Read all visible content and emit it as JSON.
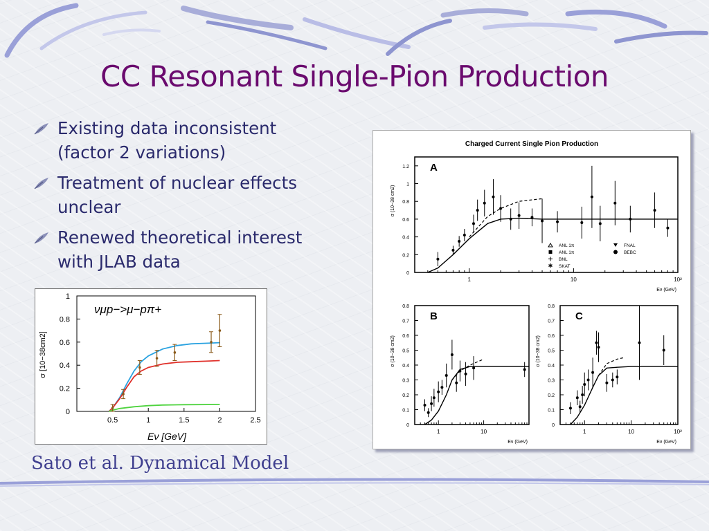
{
  "title": "CC Resonant Single-Pion Production",
  "bullets": [
    "Existing data inconsistent\n(factor 2 variations)",
    "Treatment of nuclear effects\nunclear",
    "Renewed theoretical interest\nwith JLAB data"
  ],
  "caption": "Sato et al. Dynamical Model",
  "colors": {
    "title": "#6a0a6e",
    "bullet_text": "#2a2a6c",
    "caption": "#3f3f8f"
  },
  "chart_data": [
    {
      "type": "line",
      "title": "",
      "equation": "νμp−>μ−pπ+",
      "xlabel": "Eν [GeV]",
      "ylabel": "σ [10−38cm2]",
      "xlim": [
        0,
        2.5
      ],
      "ylim": [
        0,
        1
      ],
      "xticks": [
        "0.5",
        "1",
        "1.5",
        "2",
        "2.5"
      ],
      "yticks": [
        "0",
        "0.2",
        "0.4",
        "0.6",
        "0.8",
        "1"
      ],
      "series": [
        {
          "color": "#2aa2e0",
          "x": [
            0.45,
            0.5,
            0.6,
            0.7,
            0.8,
            0.9,
            1.0,
            1.2,
            1.4,
            1.6,
            1.8,
            2.0
          ],
          "y": [
            0.0,
            0.03,
            0.12,
            0.24,
            0.35,
            0.43,
            0.48,
            0.54,
            0.57,
            0.585,
            0.59,
            0.595
          ]
        },
        {
          "color": "#e0302a",
          "x": [
            0.45,
            0.5,
            0.6,
            0.7,
            0.8,
            0.9,
            1.0,
            1.2,
            1.4,
            1.6,
            1.8,
            2.0
          ],
          "y": [
            0.0,
            0.03,
            0.11,
            0.21,
            0.3,
            0.35,
            0.38,
            0.41,
            0.425,
            0.43,
            0.435,
            0.44
          ]
        },
        {
          "color": "#4ed33e",
          "x": [
            0.45,
            0.5,
            0.6,
            0.8,
            1.0,
            1.2,
            1.5,
            2.0
          ],
          "y": [
            0.0,
            0.01,
            0.025,
            0.04,
            0.05,
            0.055,
            0.058,
            0.06
          ]
        }
      ],
      "points": [
        {
          "x": 0.5,
          "y": 0.03,
          "err": 0.03
        },
        {
          "x": 0.65,
          "y": 0.15,
          "err": 0.04
        },
        {
          "x": 0.88,
          "y": 0.38,
          "err": 0.06
        },
        {
          "x": 1.12,
          "y": 0.46,
          "err": 0.07
        },
        {
          "x": 1.37,
          "y": 0.51,
          "err": 0.07
        },
        {
          "x": 1.88,
          "y": 0.6,
          "err": 0.09
        },
        {
          "x": 2.0,
          "y": 0.7,
          "err": 0.14
        }
      ]
    },
    {
      "type": "scatter",
      "title": "Charged Current Single Pion Production",
      "panel": "A",
      "xlabel": "Eν (GeV)",
      "ylabel": "σ (10−38 cm2)",
      "xscale": "log",
      "xlim": [
        0.3,
        100
      ],
      "ylim": [
        0,
        1.3
      ],
      "xticks": [
        "1",
        "10",
        "10²"
      ],
      "yticks": [
        "0",
        "0.2",
        "0.4",
        "0.6",
        "0.8",
        "1",
        "1.2"
      ],
      "legend": [
        "ANL 1π",
        "ANL 1π",
        "BNL",
        "SKAT",
        "FNAL",
        "BEBC"
      ],
      "legend_position": "bottom-right",
      "solid_curve": {
        "x": [
          0.4,
          0.5,
          0.7,
          1.0,
          1.5,
          2.0,
          3.0,
          5.0,
          10,
          30,
          100
        ],
        "y": [
          0.0,
          0.05,
          0.2,
          0.38,
          0.55,
          0.6,
          0.61,
          0.6,
          0.6,
          0.6,
          0.6
        ]
      },
      "dashed_curve": {
        "x": [
          1.0,
          1.5,
          2.0,
          3.0,
          5.0
        ],
        "y": [
          0.4,
          0.63,
          0.72,
          0.8,
          0.83
        ]
      },
      "points": [
        {
          "x": 0.5,
          "y": 0.15,
          "err": 0.08
        },
        {
          "x": 0.7,
          "y": 0.25,
          "err": 0.05
        },
        {
          "x": 0.8,
          "y": 0.35,
          "err": 0.06
        },
        {
          "x": 0.9,
          "y": 0.42,
          "err": 0.07
        },
        {
          "x": 1.1,
          "y": 0.55,
          "err": 0.1
        },
        {
          "x": 1.2,
          "y": 0.7,
          "err": 0.12
        },
        {
          "x": 1.4,
          "y": 0.78,
          "err": 0.15
        },
        {
          "x": 1.7,
          "y": 0.85,
          "err": 0.2
        },
        {
          "x": 2.0,
          "y": 0.72,
          "err": 0.15
        },
        {
          "x": 2.5,
          "y": 0.6,
          "err": 0.12
        },
        {
          "x": 3.0,
          "y": 0.64,
          "err": 0.15
        },
        {
          "x": 4.0,
          "y": 0.62,
          "err": 0.1
        },
        {
          "x": 5.0,
          "y": 0.58,
          "err": 0.25
        },
        {
          "x": 7.0,
          "y": 0.57,
          "err": 0.12
        },
        {
          "x": 12,
          "y": 0.56,
          "err": 0.18
        },
        {
          "x": 15,
          "y": 0.85,
          "err": 0.35
        },
        {
          "x": 18,
          "y": 0.55,
          "err": 0.2
        },
        {
          "x": 25,
          "y": 0.78,
          "err": 0.25
        },
        {
          "x": 35,
          "y": 0.6,
          "err": 0.15
        },
        {
          "x": 60,
          "y": 0.7,
          "err": 0.2
        },
        {
          "x": 80,
          "y": 0.5,
          "err": 0.1
        }
      ]
    },
    {
      "type": "scatter",
      "title": "",
      "panel": "B",
      "xlabel": "Eν (GeV)",
      "ylabel": "σ (10−38 cm2)",
      "xscale": "log",
      "xlim": [
        0.3,
        100
      ],
      "ylim": [
        0,
        0.8
      ],
      "xticks": [
        "1",
        "10"
      ],
      "yticks": [
        "0",
        "0.1",
        "0.2",
        "0.3",
        "0.4",
        "0.5",
        "0.6",
        "0.7",
        "0.8"
      ],
      "solid_curve": {
        "x": [
          0.5,
          0.7,
          1.0,
          1.5,
          2.0,
          3.0,
          5.0,
          10,
          100
        ],
        "y": [
          0.0,
          0.03,
          0.09,
          0.2,
          0.3,
          0.37,
          0.39,
          0.39,
          0.39
        ]
      },
      "dashed_curve": {
        "x": [
          2.0,
          3.0,
          5.0,
          10
        ],
        "y": [
          0.3,
          0.36,
          0.4,
          0.44
        ]
      },
      "points": [
        {
          "x": 0.5,
          "y": 0.13,
          "err": 0.04
        },
        {
          "x": 0.6,
          "y": 0.08,
          "err": 0.03
        },
        {
          "x": 0.7,
          "y": 0.14,
          "err": 0.05
        },
        {
          "x": 0.8,
          "y": 0.18,
          "err": 0.06
        },
        {
          "x": 1.0,
          "y": 0.22,
          "err": 0.07
        },
        {
          "x": 1.2,
          "y": 0.25,
          "err": 0.05
        },
        {
          "x": 1.5,
          "y": 0.33,
          "err": 0.08
        },
        {
          "x": 2.0,
          "y": 0.47,
          "err": 0.1
        },
        {
          "x": 2.5,
          "y": 0.28,
          "err": 0.06
        },
        {
          "x": 3.0,
          "y": 0.36,
          "err": 0.07
        },
        {
          "x": 4.0,
          "y": 0.34,
          "err": 0.08
        },
        {
          "x": 6.0,
          "y": 0.38,
          "err": 0.08
        },
        {
          "x": 80,
          "y": 0.37,
          "err": 0.05
        }
      ]
    },
    {
      "type": "scatter",
      "title": "",
      "panel": "C",
      "xlabel": "Eν (GeV)",
      "ylabel": "σ (10−38 cm2)",
      "xscale": "log",
      "xlim": [
        0.3,
        100
      ],
      "ylim": [
        0,
        0.8
      ],
      "xticks": [
        "1",
        "10",
        "10²"
      ],
      "yticks": [
        "0",
        "0.1",
        "0.2",
        "0.3",
        "0.4",
        "0.5",
        "0.6",
        "0.7",
        "0.8"
      ],
      "solid_curve": {
        "x": [
          0.5,
          0.7,
          1.0,
          1.5,
          2.0,
          3.0,
          5.0,
          10,
          100
        ],
        "y": [
          0.0,
          0.05,
          0.13,
          0.25,
          0.33,
          0.38,
          0.385,
          0.39,
          0.39
        ]
      },
      "dashed_curve": {
        "x": [
          2.0,
          3.0,
          5.0,
          7.0
        ],
        "y": [
          0.33,
          0.41,
          0.44,
          0.45
        ]
      },
      "points": [
        {
          "x": 0.5,
          "y": 0.11,
          "err": 0.04
        },
        {
          "x": 0.7,
          "y": 0.18,
          "err": 0.05
        },
        {
          "x": 0.8,
          "y": 0.12,
          "err": 0.04
        },
        {
          "x": 0.9,
          "y": 0.2,
          "err": 0.06
        },
        {
          "x": 1.0,
          "y": 0.27,
          "err": 0.08
        },
        {
          "x": 1.2,
          "y": 0.3,
          "err": 0.07
        },
        {
          "x": 1.5,
          "y": 0.35,
          "err": 0.1
        },
        {
          "x": 1.8,
          "y": 0.55,
          "err": 0.08
        },
        {
          "x": 2.0,
          "y": 0.52,
          "err": 0.1
        },
        {
          "x": 3.0,
          "y": 0.28,
          "err": 0.06
        },
        {
          "x": 4.0,
          "y": 0.3,
          "err": 0.05
        },
        {
          "x": 5.0,
          "y": 0.32,
          "err": 0.05
        },
        {
          "x": 15,
          "y": 0.55,
          "err": 0.25
        },
        {
          "x": 50,
          "y": 0.5,
          "err": 0.1
        }
      ]
    }
  ]
}
